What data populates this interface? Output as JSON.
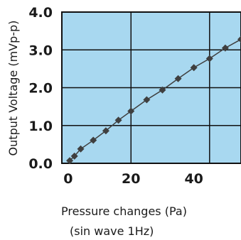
{
  "chart_data": {
    "type": "line",
    "xlabel": "Pressure changes (Pa)",
    "xlabel_sub": "(sin wave 1Hz)",
    "ylabel": "Output Voltage (mVp-p)",
    "xlim": [
      -2,
      55
    ],
    "ylim": [
      0,
      4
    ],
    "x_ticks": [
      "0",
      "20",
      "40"
    ],
    "x_tick_values": [
      0,
      20,
      40
    ],
    "y_ticks": [
      "0.0",
      "1.0",
      "2.0",
      "3.0",
      "4.0"
    ],
    "y_tick_values": [
      0,
      1,
      2,
      3,
      4
    ],
    "grid": true,
    "x_grid": [
      20,
      45
    ],
    "plot_background": "#a8d8f0",
    "series_color": "#3f3f3f",
    "series": [
      {
        "x": [
          0.5,
          2,
          4,
          8,
          12,
          16,
          20,
          25,
          30,
          35,
          40,
          45,
          50,
          55
        ],
        "values": [
          0.07,
          0.19,
          0.38,
          0.61,
          0.86,
          1.14,
          1.38,
          1.68,
          1.94,
          2.24,
          2.53,
          2.77,
          3.05,
          3.28
        ]
      }
    ]
  }
}
